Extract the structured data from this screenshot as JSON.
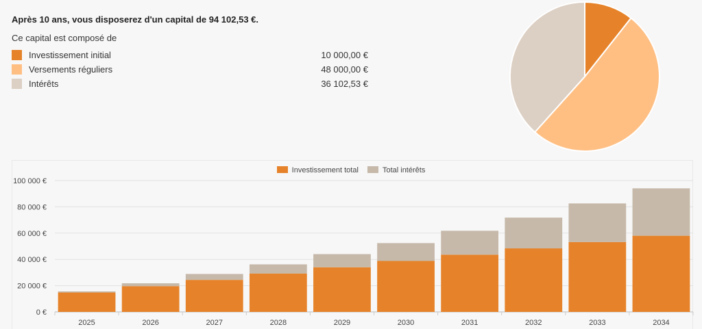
{
  "headline": "Après 10 ans, vous disposerez d'un capital de 94 102,53 €.",
  "subhead": "Ce capital est composé de",
  "breakdown": [
    {
      "label": "Investissement initial",
      "value": "10 000,00 €",
      "color": "#e6832a"
    },
    {
      "label": "Versements réguliers",
      "value": "48 000,00 €",
      "color": "#ffbf83"
    },
    {
      "label": "Intérêts",
      "value": "36 102,53 €",
      "color": "#dccfc3"
    }
  ],
  "chart_data": [
    {
      "type": "pie",
      "labels": [
        "Investissement initial",
        "Versements réguliers",
        "Intérêts"
      ],
      "values": [
        10000.0,
        48000.0,
        36102.53
      ],
      "colors": [
        "#e6832a",
        "#ffbf83",
        "#dccfc3"
      ]
    },
    {
      "type": "bar",
      "stacked": true,
      "categories": [
        "2025",
        "2026",
        "2027",
        "2028",
        "2029",
        "2030",
        "2031",
        "2032",
        "2033",
        "2034"
      ],
      "series": [
        {
          "name": "Investissement total",
          "color": "#e6832a",
          "values": [
            14800,
            19600,
            24400,
            29200,
            34000,
            38800,
            43600,
            48400,
            53200,
            58000
          ]
        },
        {
          "name": "Total intérêts",
          "color": "#c6b9aa",
          "values": [
            800,
            2200,
            4500,
            7000,
            10000,
            13600,
            18200,
            23400,
            29400,
            36102.53
          ]
        }
      ],
      "yticks": [
        "0 €",
        "20 000 €",
        "40 000 €",
        "60 000 €",
        "80 000 €",
        "100 000 €"
      ],
      "ylim": [
        0,
        100000
      ],
      "grid": true,
      "legend": "top"
    }
  ]
}
